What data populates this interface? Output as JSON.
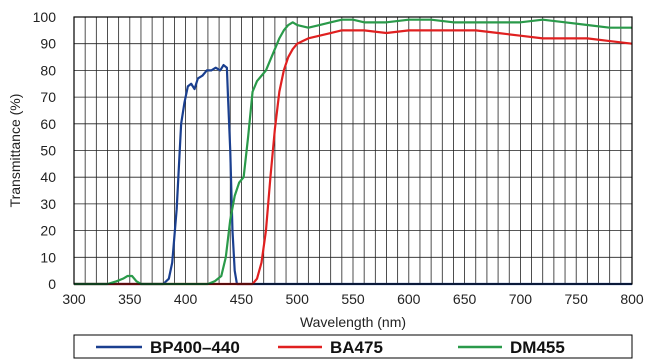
{
  "chart_data": {
    "type": "line",
    "title": "",
    "xlabel": "Wavelength (nm)",
    "ylabel": "Transmittance (%)",
    "xlim": [
      300,
      800
    ],
    "ylim": [
      0,
      100
    ],
    "x_ticks": [
      300,
      350,
      400,
      450,
      500,
      550,
      600,
      650,
      700,
      750,
      800
    ],
    "y_ticks": [
      0,
      10,
      20,
      30,
      40,
      50,
      60,
      70,
      80,
      90,
      100
    ],
    "x_tick_labels": [
      "300",
      "350",
      "400",
      "450",
      "500",
      "550",
      "600",
      "650",
      "700",
      "750",
      "800"
    ],
    "y_tick_labels": [
      "0",
      "10",
      "20",
      "30",
      "40",
      "50",
      "60",
      "70",
      "80",
      "90",
      "100"
    ],
    "grid": true,
    "grid_minor_x_step": 10,
    "grid_minor_y_step": 10,
    "legend_position": "bottom",
    "series": [
      {
        "name": "BP400–440",
        "color": "#1a3f8f",
        "points": [
          [
            300,
            0
          ],
          [
            380,
            0
          ],
          [
            385,
            2
          ],
          [
            388,
            8
          ],
          [
            392,
            28
          ],
          [
            396,
            60
          ],
          [
            399,
            68
          ],
          [
            402,
            74
          ],
          [
            405,
            75
          ],
          [
            408,
            73
          ],
          [
            411,
            77
          ],
          [
            415,
            78
          ],
          [
            419,
            80
          ],
          [
            423,
            80
          ],
          [
            427,
            81
          ],
          [
            431,
            80
          ],
          [
            434,
            82
          ],
          [
            437,
            81
          ],
          [
            438,
            70
          ],
          [
            440,
            50
          ],
          [
            442,
            20
          ],
          [
            444,
            5
          ],
          [
            446,
            0
          ],
          [
            800,
            0
          ]
        ]
      },
      {
        "name": "BA475",
        "color": "#e02020",
        "points": [
          [
            300,
            0
          ],
          [
            460,
            0
          ],
          [
            464,
            2
          ],
          [
            468,
            8
          ],
          [
            472,
            20
          ],
          [
            476,
            40
          ],
          [
            480,
            58
          ],
          [
            484,
            72
          ],
          [
            488,
            80
          ],
          [
            492,
            85
          ],
          [
            496,
            88
          ],
          [
            500,
            90
          ],
          [
            505,
            91
          ],
          [
            510,
            92
          ],
          [
            520,
            93
          ],
          [
            530,
            94
          ],
          [
            540,
            95
          ],
          [
            560,
            95
          ],
          [
            580,
            94
          ],
          [
            600,
            95
          ],
          [
            620,
            95
          ],
          [
            640,
            95
          ],
          [
            660,
            95
          ],
          [
            680,
            94
          ],
          [
            700,
            93
          ],
          [
            720,
            92
          ],
          [
            740,
            92
          ],
          [
            760,
            92
          ],
          [
            780,
            91
          ],
          [
            800,
            90
          ]
        ]
      },
      {
        "name": "DM455",
        "color": "#2a9a4a",
        "points": [
          [
            300,
            0
          ],
          [
            330,
            0
          ],
          [
            338,
            1
          ],
          [
            344,
            2
          ],
          [
            348,
            3
          ],
          [
            352,
            3
          ],
          [
            356,
            1
          ],
          [
            360,
            0
          ],
          [
            410,
            0
          ],
          [
            420,
            0
          ],
          [
            426,
            1
          ],
          [
            432,
            3
          ],
          [
            436,
            10
          ],
          [
            440,
            24
          ],
          [
            444,
            33
          ],
          [
            448,
            38
          ],
          [
            452,
            40
          ],
          [
            456,
            55
          ],
          [
            460,
            72
          ],
          [
            464,
            76
          ],
          [
            468,
            78
          ],
          [
            472,
            80
          ],
          [
            476,
            84
          ],
          [
            480,
            88
          ],
          [
            484,
            92
          ],
          [
            488,
            95
          ],
          [
            492,
            97
          ],
          [
            496,
            98
          ],
          [
            500,
            97
          ],
          [
            510,
            96
          ],
          [
            520,
            97
          ],
          [
            530,
            98
          ],
          [
            540,
            99
          ],
          [
            550,
            99
          ],
          [
            560,
            98
          ],
          [
            580,
            98
          ],
          [
            600,
            99
          ],
          [
            620,
            99
          ],
          [
            640,
            98
          ],
          [
            660,
            98
          ],
          [
            680,
            98
          ],
          [
            700,
            98
          ],
          [
            720,
            99
          ],
          [
            740,
            98
          ],
          [
            760,
            97
          ],
          [
            780,
            96
          ],
          [
            800,
            96
          ]
        ]
      }
    ]
  },
  "colors": {
    "grid": "#222222",
    "axis": "#000000"
  }
}
